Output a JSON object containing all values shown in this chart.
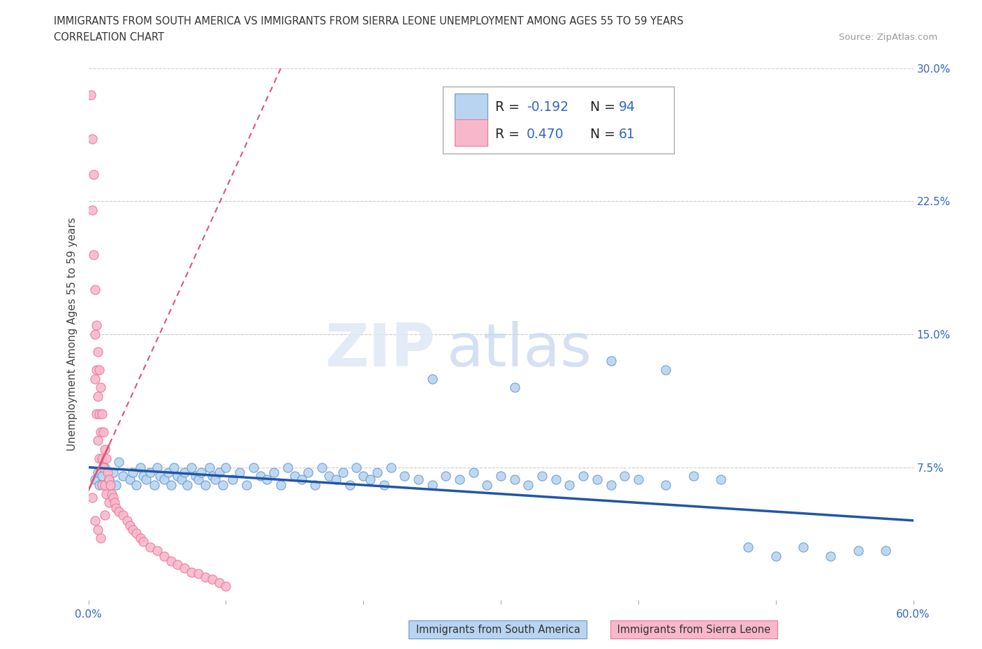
{
  "title_line1": "IMMIGRANTS FROM SOUTH AMERICA VS IMMIGRANTS FROM SIERRA LEONE UNEMPLOYMENT AMONG AGES 55 TO 59 YEARS",
  "title_line2": "CORRELATION CHART",
  "source_text": "Source: ZipAtlas.com",
  "ylabel": "Unemployment Among Ages 55 to 59 years",
  "xlim": [
    0.0,
    0.6
  ],
  "ylim": [
    0.0,
    0.3
  ],
  "xticks": [
    0.0,
    0.1,
    0.2,
    0.3,
    0.4,
    0.5,
    0.6
  ],
  "xticklabels": [
    "0.0%",
    "",
    "",
    "",
    "",
    "",
    "60.0%"
  ],
  "yticks": [
    0.0,
    0.075,
    0.15,
    0.225,
    0.3
  ],
  "yticklabels_right": [
    "",
    "7.5%",
    "15.0%",
    "22.5%",
    "30.0%"
  ],
  "series1_color": "#b8d4f0",
  "series1_edge": "#6699cc",
  "series2_color": "#f8b8cc",
  "series2_edge": "#e87898",
  "trendline1_color": "#2255aa",
  "trendline2_color": "#dd5577",
  "watermark_zip": "ZIP",
  "watermark_atlas": "atlas",
  "legend_R1": "-0.192",
  "legend_N1": "94",
  "legend_R2": "0.470",
  "legend_N2": "61",
  "R_N_color": "#3366cc",
  "series1_x": [
    0.005,
    0.007,
    0.008,
    0.01,
    0.012,
    0.015,
    0.018,
    0.02,
    0.022,
    0.025,
    0.03,
    0.032,
    0.035,
    0.038,
    0.04,
    0.042,
    0.045,
    0.048,
    0.05,
    0.052,
    0.055,
    0.058,
    0.06,
    0.062,
    0.065,
    0.068,
    0.07,
    0.072,
    0.075,
    0.078,
    0.08,
    0.082,
    0.085,
    0.088,
    0.09,
    0.092,
    0.095,
    0.098,
    0.1,
    0.105,
    0.11,
    0.115,
    0.12,
    0.125,
    0.13,
    0.135,
    0.14,
    0.145,
    0.15,
    0.155,
    0.16,
    0.165,
    0.17,
    0.175,
    0.18,
    0.185,
    0.19,
    0.195,
    0.2,
    0.205,
    0.21,
    0.215,
    0.22,
    0.23,
    0.24,
    0.25,
    0.26,
    0.27,
    0.28,
    0.29,
    0.3,
    0.31,
    0.32,
    0.33,
    0.34,
    0.35,
    0.36,
    0.37,
    0.38,
    0.39,
    0.4,
    0.42,
    0.44,
    0.46,
    0.48,
    0.5,
    0.52,
    0.54,
    0.56,
    0.58,
    0.25,
    0.31,
    0.38,
    0.42
  ],
  "series1_y": [
    0.068,
    0.072,
    0.065,
    0.07,
    0.075,
    0.068,
    0.072,
    0.065,
    0.078,
    0.07,
    0.068,
    0.072,
    0.065,
    0.075,
    0.07,
    0.068,
    0.072,
    0.065,
    0.075,
    0.07,
    0.068,
    0.072,
    0.065,
    0.075,
    0.07,
    0.068,
    0.072,
    0.065,
    0.075,
    0.07,
    0.068,
    0.072,
    0.065,
    0.075,
    0.07,
    0.068,
    0.072,
    0.065,
    0.075,
    0.068,
    0.072,
    0.065,
    0.075,
    0.07,
    0.068,
    0.072,
    0.065,
    0.075,
    0.07,
    0.068,
    0.072,
    0.065,
    0.075,
    0.07,
    0.068,
    0.072,
    0.065,
    0.075,
    0.07,
    0.068,
    0.072,
    0.065,
    0.075,
    0.07,
    0.068,
    0.065,
    0.07,
    0.068,
    0.072,
    0.065,
    0.07,
    0.068,
    0.065,
    0.07,
    0.068,
    0.065,
    0.07,
    0.068,
    0.065,
    0.07,
    0.068,
    0.065,
    0.07,
    0.068,
    0.03,
    0.025,
    0.03,
    0.025,
    0.028,
    0.028,
    0.125,
    0.12,
    0.135,
    0.13
  ],
  "series2_x": [
    0.002,
    0.003,
    0.003,
    0.004,
    0.004,
    0.005,
    0.005,
    0.005,
    0.006,
    0.006,
    0.006,
    0.007,
    0.007,
    0.007,
    0.008,
    0.008,
    0.008,
    0.009,
    0.009,
    0.01,
    0.01,
    0.01,
    0.011,
    0.011,
    0.012,
    0.012,
    0.013,
    0.013,
    0.014,
    0.015,
    0.015,
    0.016,
    0.017,
    0.018,
    0.019,
    0.02,
    0.022,
    0.025,
    0.028,
    0.03,
    0.032,
    0.035,
    0.038,
    0.04,
    0.045,
    0.05,
    0.055,
    0.06,
    0.065,
    0.07,
    0.075,
    0.08,
    0.085,
    0.09,
    0.095,
    0.1,
    0.003,
    0.005,
    0.007,
    0.009,
    0.012
  ],
  "series2_y": [
    0.285,
    0.26,
    0.22,
    0.24,
    0.195,
    0.175,
    0.15,
    0.125,
    0.155,
    0.13,
    0.105,
    0.14,
    0.115,
    0.09,
    0.13,
    0.105,
    0.08,
    0.12,
    0.095,
    0.105,
    0.08,
    0.065,
    0.095,
    0.075,
    0.085,
    0.065,
    0.08,
    0.06,
    0.072,
    0.068,
    0.055,
    0.065,
    0.06,
    0.058,
    0.055,
    0.052,
    0.05,
    0.048,
    0.045,
    0.042,
    0.04,
    0.038,
    0.035,
    0.033,
    0.03,
    0.028,
    0.025,
    0.022,
    0.02,
    0.018,
    0.016,
    0.015,
    0.013,
    0.012,
    0.01,
    0.008,
    0.058,
    0.045,
    0.04,
    0.035,
    0.048
  ],
  "trendline2_x_start": 0.0,
  "trendline2_x_end": 0.17,
  "trendline1_x_start": 0.0,
  "trendline1_x_end": 0.6
}
